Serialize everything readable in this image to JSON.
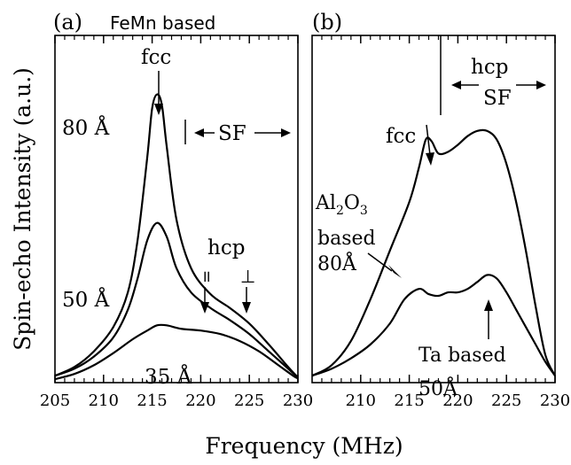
{
  "figure": {
    "xlabel": "Frequency (MHz)",
    "ylabel": "Spin-echo Intensity (a.u.)"
  },
  "chart_data": [
    {
      "type": "line",
      "panel_label": "(a)",
      "title": "FeMn based",
      "xlabel": "Frequency (MHz)",
      "ylabel": "Spin-echo Intensity (a.u.)",
      "xlim": [
        205,
        230
      ],
      "ylim": [
        0,
        1
      ],
      "xticks": [
        205,
        210,
        215,
        220,
        225,
        230
      ],
      "grid": false,
      "series": [
        {
          "name": "80 Å",
          "x": [
            205,
            207,
            209,
            211,
            212.5,
            213.5,
            214.5,
            215,
            215.5,
            216,
            216.5,
            217.5,
            219,
            221,
            223,
            225,
            227,
            229,
            230
          ],
          "y": [
            0.02,
            0.045,
            0.09,
            0.16,
            0.26,
            0.41,
            0.65,
            0.79,
            0.83,
            0.8,
            0.68,
            0.47,
            0.33,
            0.255,
            0.215,
            0.17,
            0.11,
            0.045,
            0.015
          ]
        },
        {
          "name": "50 Å",
          "x": [
            205,
            207,
            209,
            211,
            212.5,
            213.5,
            214.5,
            215.5,
            216.5,
            217.5,
            219,
            221,
            223,
            225,
            227,
            229,
            230
          ],
          "y": [
            0.02,
            0.04,
            0.075,
            0.13,
            0.21,
            0.3,
            0.41,
            0.46,
            0.42,
            0.33,
            0.26,
            0.215,
            0.18,
            0.14,
            0.09,
            0.04,
            0.015
          ]
        },
        {
          "name": "35 Å",
          "x": [
            205,
            207,
            209,
            211,
            213,
            214.5,
            215.5,
            216.5,
            218,
            220,
            222,
            224,
            226,
            228,
            229.5,
            230
          ],
          "y": [
            0.01,
            0.025,
            0.05,
            0.085,
            0.125,
            0.15,
            0.165,
            0.165,
            0.155,
            0.15,
            0.14,
            0.12,
            0.09,
            0.05,
            0.02,
            0.012
          ]
        }
      ],
      "annotations": {
        "fcc": "fcc",
        "sf": "SF",
        "hcp": "hcp",
        "parallel": "॥",
        "perp": "⊥"
      }
    },
    {
      "type": "line",
      "panel_label": "(b)",
      "xlabel": "Frequency (MHz)",
      "xlim": [
        205,
        230
      ],
      "ylim": [
        0,
        1
      ],
      "xticks": [
        210,
        215,
        220,
        225,
        230
      ],
      "grid": false,
      "series": [
        {
          "name": "Al2O3 based 80Å",
          "x": [
            205,
            207,
            209,
            211,
            213,
            215,
            216,
            216.7,
            217.3,
            218,
            219,
            220,
            221,
            222,
            223,
            224,
            225,
            226,
            227,
            228,
            229,
            230
          ],
          "y": [
            0.02,
            0.05,
            0.12,
            0.24,
            0.38,
            0.52,
            0.62,
            0.7,
            0.695,
            0.66,
            0.665,
            0.685,
            0.71,
            0.725,
            0.725,
            0.7,
            0.63,
            0.52,
            0.38,
            0.22,
            0.08,
            0.02
          ]
        },
        {
          "name": "Ta based 50Å",
          "x": [
            205,
            207,
            209,
            211,
            213,
            214.5,
            216,
            217,
            218,
            219,
            220,
            221,
            222,
            223,
            224,
            225,
            226,
            227,
            228,
            229,
            230
          ],
          "y": [
            0.02,
            0.04,
            0.07,
            0.11,
            0.17,
            0.24,
            0.27,
            0.255,
            0.25,
            0.26,
            0.26,
            0.27,
            0.29,
            0.31,
            0.3,
            0.26,
            0.21,
            0.16,
            0.11,
            0.06,
            0.02
          ]
        }
      ],
      "annotations": {
        "fcc": "fcc",
        "hcp": "hcp",
        "sf": "SF",
        "al_line1": "Al",
        "al_sub1": "2",
        "al_line1b": "O",
        "al_sub2": "3",
        "al_line2": "based",
        "al_line3": "80Å",
        "ta_line1": "Ta based",
        "ta_line2": "50Å"
      }
    }
  ]
}
